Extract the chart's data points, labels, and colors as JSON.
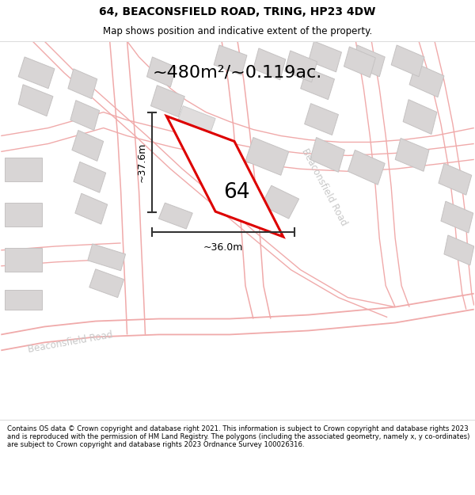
{
  "title_line1": "64, BEACONSFIELD ROAD, TRING, HP23 4DW",
  "title_line2": "Map shows position and indicative extent of the property.",
  "area_text": "~480m²/~0.119ac.",
  "label_64": "64",
  "dim_vertical": "~37.6m",
  "dim_horizontal": "~36.0m",
  "road_label_bottom": "Beaconsfield Road",
  "road_label_diag": "Beaconsfield Road",
  "copyright_text": "Contains OS data © Crown copyright and database right 2021. This information is subject to Crown copyright and database rights 2023 and is reproduced with the permission of HM Land Registry. The polygons (including the associated geometry, namely x, y co-ordinates) are subject to Crown copyright and database rights 2023 Ordnance Survey 100026316.",
  "map_bg": "#f7f5f5",
  "header_bg": "#ffffff",
  "footer_bg": "#ffffff",
  "red_plot_color": "#dd0000",
  "gray_building_fill": "#d8d5d5",
  "gray_building_edge": "#c5c2c2",
  "road_pink_line": "#f0aaaa",
  "road_pink_line2": "#e89090",
  "dim_line_color": "#333333",
  "road_label_color": "#c8c8c8",
  "separator_color": "#dddddd"
}
